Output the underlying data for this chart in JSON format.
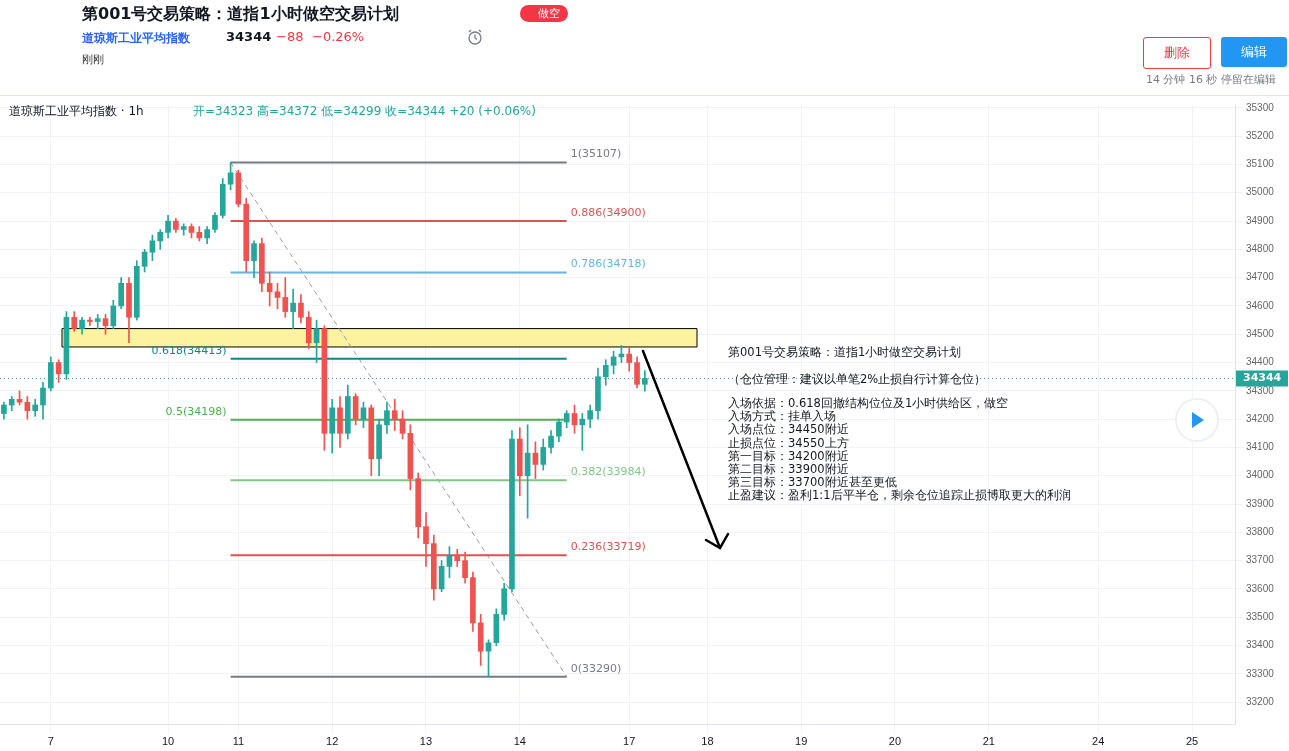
{
  "chart_data": {
    "type": "candlestick",
    "title": "第001号交易策略：道指1小时做空交易计划",
    "subtitle": "道琼斯工业平均指数",
    "annotations": [
      "做空",
      "34344",
      "−88",
      "−0.26%",
      "刚刚",
      "删除",
      "编辑",
      "14 分钟 16 秒 停留在编辑",
      "道琼斯工业平均指数 · 1h",
      "开=34323 高=34372 低=34299 收=34344 +20 (+0.06%)",
      "第001号交易策略：道指1小时做空交易计划",
      "（仓位管理：建议以单笔2%止损自行计算仓位）",
      "入场依据：0.618回撤结构位位及1小时供给区，做空",
      "入场方式：挂单入场",
      "入场点位：34450附近",
      "止损点位：34550上方",
      "第一目标：34200附近",
      "第二目标：33900附近",
      "第三目标：33700附近甚至更低",
      "止盈建议：盈利1:1后平半仓，剩余仓位追踪止损博取更大的利润"
    ],
    "categories": [
      null,
      null,
      null,
      null,
      null,
      null,
      "7",
      null,
      null,
      null,
      null,
      null,
      null,
      null,
      null,
      null,
      null,
      null,
      null,
      null,
      null,
      "10",
      null,
      null,
      null,
      null,
      null,
      null,
      null,
      null,
      "11",
      null,
      null,
      null,
      null,
      null,
      null,
      null,
      null,
      null,
      null,
      null,
      "12",
      null,
      null,
      null,
      null,
      null,
      null,
      null,
      null,
      null,
      null,
      null,
      "13",
      null,
      null,
      null,
      null,
      null,
      null,
      null,
      null,
      null,
      null,
      null,
      "14",
      null,
      null,
      null,
      null,
      null,
      null,
      null,
      null,
      null,
      null,
      null,
      null,
      null,
      "17",
      null,
      null,
      null,
      null,
      null,
      null,
      null,
      null,
      null,
      "18",
      null,
      null,
      null,
      null,
      null,
      null,
      null,
      null,
      null,
      null,
      null,
      "19",
      null,
      null,
      null,
      null,
      null,
      null,
      null,
      null,
      null,
      null,
      null,
      "20",
      null,
      null,
      null,
      null,
      null,
      null,
      null,
      null,
      null,
      null,
      null,
      "21",
      null,
      null,
      null,
      null,
      null,
      null,
      null,
      null,
      null,
      null,
      null,
      null,
      null,
      "24",
      null,
      null,
      null,
      null,
      null,
      null,
      null,
      null,
      null,
      null,
      null,
      "25",
      null,
      null,
      null,
      null,
      null
    ],
    "ohlc": [
      [
        34220,
        34260,
        34200,
        34250
      ],
      [
        34250,
        34280,
        34230,
        34270
      ],
      [
        34270,
        34300,
        34250,
        34260
      ],
      [
        34260,
        34280,
        34200,
        34230
      ],
      [
        34230,
        34270,
        34210,
        34250
      ],
      [
        34250,
        34330,
        34200,
        34310
      ],
      [
        34310,
        34420,
        34300,
        34400
      ],
      [
        34400,
        34410,
        34330,
        34360
      ],
      [
        34360,
        34580,
        34340,
        34560
      ],
      [
        34560,
        34580,
        34510,
        34520
      ],
      [
        34520,
        34560,
        34500,
        34550
      ],
      [
        34550,
        34560,
        34530,
        34545
      ],
      [
        34545,
        34570,
        34520,
        34555
      ],
      [
        34555,
        34570,
        34500,
        34530
      ],
      [
        34530,
        34620,
        34520,
        34600
      ],
      [
        34600,
        34700,
        34590,
        34680
      ],
      [
        34680,
        34700,
        34470,
        34560
      ],
      [
        34560,
        34760,
        34550,
        34740
      ],
      [
        34740,
        34800,
        34720,
        34790
      ],
      [
        34790,
        34850,
        34760,
        34830
      ],
      [
        34830,
        34870,
        34800,
        34860
      ],
      [
        34860,
        34920,
        34840,
        34900
      ],
      [
        34900,
        34910,
        34860,
        34870
      ],
      [
        34870,
        34890,
        34850,
        34880
      ],
      [
        34880,
        34890,
        34840,
        34860
      ],
      [
        34860,
        34880,
        34830,
        34840
      ],
      [
        34840,
        34880,
        34820,
        34870
      ],
      [
        34870,
        34930,
        34860,
        34920
      ],
      [
        34920,
        35050,
        34910,
        35030
      ],
      [
        35030,
        35107,
        35010,
        35070
      ],
      [
        35070,
        35080,
        34950,
        34960
      ],
      [
        34960,
        34980,
        34720,
        34760
      ],
      [
        34760,
        34830,
        34700,
        34820
      ],
      [
        34820,
        34840,
        34650,
        34680
      ],
      [
        34680,
        34720,
        34600,
        34650
      ],
      [
        34650,
        34680,
        34590,
        34630
      ],
      [
        34630,
        34700,
        34560,
        34580
      ],
      [
        34580,
        34660,
        34520,
        34610
      ],
      [
        34610,
        34640,
        34540,
        34560
      ],
      [
        34560,
        34580,
        34450,
        34470
      ],
      [
        34470,
        34550,
        34400,
        34520
      ],
      [
        34520,
        34530,
        34090,
        34150
      ],
      [
        34150,
        34270,
        34080,
        34240
      ],
      [
        34240,
        34280,
        34100,
        34150
      ],
      [
        34150,
        34320,
        34130,
        34280
      ],
      [
        34280,
        34290,
        34180,
        34200
      ],
      [
        34200,
        34260,
        34170,
        34240
      ],
      [
        34240,
        34250,
        34000,
        34060
      ],
      [
        34060,
        34200,
        34000,
        34180
      ],
      [
        34180,
        34260,
        34150,
        34230
      ],
      [
        34230,
        34270,
        34160,
        34200
      ],
      [
        34200,
        34230,
        34130,
        34150
      ],
      [
        34150,
        34180,
        33950,
        33990
      ],
      [
        33990,
        34010,
        33780,
        33820
      ],
      [
        33820,
        33870,
        33680,
        33760
      ],
      [
        33760,
        33790,
        33560,
        33600
      ],
      [
        33600,
        33700,
        33590,
        33680
      ],
      [
        33680,
        33750,
        33640,
        33720
      ],
      [
        33720,
        33740,
        33680,
        33700
      ],
      [
        33700,
        33730,
        33620,
        33640
      ],
      [
        33640,
        33660,
        33450,
        33480
      ],
      [
        33480,
        33510,
        33330,
        33380
      ],
      [
        33380,
        33420,
        33290,
        33410
      ],
      [
        33410,
        33530,
        33400,
        33510
      ],
      [
        33510,
        33620,
        33490,
        33600
      ],
      [
        33600,
        34160,
        33590,
        34130
      ],
      [
        34130,
        34170,
        33930,
        34000
      ],
      [
        34000,
        34180,
        33850,
        34080
      ],
      [
        34080,
        34120,
        33990,
        34040
      ],
      [
        34040,
        34130,
        34020,
        34100
      ],
      [
        34100,
        34160,
        34080,
        34140
      ],
      [
        34140,
        34200,
        34120,
        34190
      ],
      [
        34190,
        34230,
        34170,
        34220
      ],
      [
        34220,
        34250,
        34150,
        34180
      ],
      [
        34180,
        34220,
        34090,
        34200
      ],
      [
        34200,
        34250,
        34170,
        34230
      ],
      [
        34230,
        34380,
        34200,
        34350
      ],
      [
        34350,
        34410,
        34320,
        34390
      ],
      [
        34390,
        34440,
        34360,
        34420
      ],
      [
        34420,
        34460,
        34400,
        34430
      ],
      [
        34430,
        34450,
        34370,
        34400
      ],
      [
        34400,
        34420,
        34310,
        34323
      ],
      [
        34323,
        34372,
        34299,
        34344
      ],
      null,
      null,
      null,
      null,
      null,
      null,
      null,
      null,
      null,
      null,
      null,
      null,
      null,
      null,
      null,
      null,
      null,
      null,
      null,
      null,
      null,
      null,
      null,
      null,
      null,
      null,
      null,
      null,
      null,
      null,
      null,
      null,
      null,
      null,
      null,
      null,
      null,
      null,
      null,
      null,
      null,
      null,
      null,
      null,
      null,
      null,
      null,
      null,
      null,
      null,
      null,
      null,
      null,
      null,
      null,
      null,
      null,
      null,
      null,
      null,
      null,
      null,
      null,
      null,
      null,
      null,
      null,
      null,
      null,
      null,
      null,
      null,
      null,
      null,
      null
    ],
    "series": [
      {
        "type": "line",
        "name": "1(35107)",
        "color": "#787b86",
        "values": [
          null,
          null,
          null,
          null,
          null,
          null,
          null,
          null,
          null,
          null,
          null,
          null,
          null,
          null,
          null,
          null,
          null,
          null,
          null,
          null,
          null,
          null,
          null,
          null,
          null,
          null,
          null,
          null,
          null,
          35107,
          null,
          null,
          null,
          null,
          null,
          null,
          null,
          null,
          null,
          null,
          null,
          null,
          null,
          null,
          null,
          null,
          null,
          null,
          null,
          null,
          null,
          null,
          null,
          null,
          null,
          null,
          null,
          null,
          null,
          null,
          null,
          null,
          null,
          null,
          null,
          null,
          null,
          null,
          null,
          null,
          null,
          null,
          35107,
          null,
          null,
          null,
          null,
          null,
          null,
          null,
          null,
          null,
          null,
          null,
          null,
          null,
          null,
          null,
          null,
          null,
          null,
          null,
          null,
          null,
          null,
          null,
          null,
          null,
          null,
          null,
          null,
          null,
          null,
          null,
          null,
          null,
          null,
          null,
          null,
          null,
          null,
          null,
          null,
          null,
          null,
          null,
          null,
          null,
          null,
          null,
          null,
          null,
          null,
          null,
          null,
          null,
          null,
          null,
          null,
          null,
          null,
          null,
          null,
          null,
          null,
          null,
          null,
          null,
          null,
          null,
          null,
          null,
          null,
          null,
          null,
          null,
          null,
          null,
          null,
          null,
          null,
          null,
          null,
          null,
          null,
          null,
          null,
          null
        ]
      },
      {
        "type": "line",
        "name": "0.886(34900)",
        "color": "#e0524f",
        "values": [
          null,
          null,
          null,
          null,
          null,
          null,
          null,
          null,
          null,
          null,
          null,
          null,
          null,
          null,
          null,
          null,
          null,
          null,
          null,
          null,
          null,
          null,
          null,
          null,
          null,
          null,
          null,
          null,
          null,
          34900,
          null,
          null,
          null,
          null,
          null,
          null,
          null,
          null,
          null,
          null,
          null,
          null,
          null,
          null,
          null,
          null,
          null,
          null,
          null,
          null,
          null,
          null,
          null,
          null,
          null,
          null,
          null,
          null,
          null,
          null,
          null,
          null,
          null,
          null,
          null,
          null,
          null,
          null,
          null,
          null,
          null,
          null,
          34900,
          null,
          null,
          null,
          null,
          null,
          null,
          null,
          null,
          null,
          null,
          null,
          null,
          null,
          null,
          null,
          null,
          null,
          null,
          null,
          null,
          null,
          null,
          null,
          null,
          null,
          null,
          null,
          null,
          null,
          null,
          null,
          null,
          null,
          null,
          null,
          null,
          null,
          null,
          null,
          null,
          null,
          null,
          null,
          null,
          null,
          null,
          null,
          null,
          null,
          null,
          null,
          null,
          null,
          null,
          null,
          null,
          null,
          null,
          null,
          null,
          null,
          null,
          null,
          null,
          null,
          null,
          null,
          null,
          null,
          null,
          null,
          null,
          null,
          null,
          null,
          null,
          null,
          null,
          null,
          null,
          null,
          null,
          null,
          null,
          null
        ]
      },
      {
        "type": "line",
        "name": "0.786(34718)",
        "color": "#64b5e0",
        "values": [
          null,
          null,
          null,
          null,
          null,
          null,
          null,
          null,
          null,
          null,
          null,
          null,
          null,
          null,
          null,
          null,
          null,
          null,
          null,
          null,
          null,
          null,
          null,
          null,
          null,
          null,
          null,
          null,
          null,
          34718,
          null,
          null,
          null,
          null,
          null,
          null,
          null,
          null,
          null,
          null,
          null,
          null,
          null,
          null,
          null,
          null,
          null,
          null,
          null,
          null,
          null,
          null,
          null,
          null,
          null,
          null,
          null,
          null,
          null,
          null,
          null,
          null,
          null,
          null,
          null,
          null,
          null,
          null,
          null,
          null,
          null,
          null,
          34718,
          null,
          null,
          null,
          null,
          null,
          null,
          null,
          null,
          null,
          null,
          null,
          null,
          null,
          null,
          null,
          null,
          null,
          null,
          null,
          null,
          null,
          null,
          null,
          null,
          null,
          null,
          null,
          null,
          null,
          null,
          null,
          null,
          null,
          null,
          null,
          null,
          null,
          null,
          null,
          null,
          null,
          null,
          null,
          null,
          null,
          null,
          null,
          null,
          null,
          null,
          null,
          null,
          null,
          null,
          null,
          null,
          null,
          null,
          null,
          null,
          null,
          null,
          null,
          null,
          null,
          null,
          null,
          null,
          null,
          null,
          null,
          null,
          null,
          null,
          null,
          null,
          null,
          null,
          null,
          null,
          null,
          null,
          null,
          null,
          null
        ]
      },
      {
        "type": "line",
        "name": "0.618(34413)",
        "color": "#138484",
        "values": [
          null,
          null,
          null,
          null,
          null,
          null,
          null,
          null,
          null,
          null,
          null,
          null,
          null,
          null,
          null,
          null,
          null,
          null,
          null,
          null,
          null,
          null,
          null,
          null,
          null,
          null,
          null,
          null,
          null,
          34413,
          null,
          null,
          null,
          null,
          null,
          null,
          null,
          null,
          null,
          null,
          null,
          null,
          null,
          null,
          null,
          null,
          null,
          null,
          null,
          null,
          null,
          null,
          null,
          null,
          null,
          null,
          null,
          null,
          null,
          null,
          null,
          null,
          null,
          null,
          null,
          null,
          null,
          null,
          null,
          null,
          null,
          null,
          34413,
          null,
          null,
          null,
          null,
          null,
          null,
          null,
          null,
          null,
          null,
          null,
          null,
          null,
          null,
          null,
          null,
          null,
          null,
          null,
          null,
          null,
          null,
          null,
          null,
          null,
          null,
          null,
          null,
          null,
          null,
          null,
          null,
          null,
          null,
          null,
          null,
          null,
          null,
          null,
          null,
          null,
          null,
          null,
          null,
          null,
          null,
          null,
          null,
          null,
          null,
          null,
          null,
          null,
          null,
          null,
          null,
          null,
          null,
          null,
          null,
          null,
          null,
          null,
          null,
          null,
          null,
          null,
          null,
          null,
          null,
          null,
          null,
          null,
          null,
          null,
          null,
          null,
          null,
          null,
          null,
          null,
          null,
          null,
          null,
          null
        ]
      },
      {
        "type": "line",
        "name": "0.5(34198)",
        "color": "#4caf50",
        "values": [
          null,
          null,
          null,
          null,
          null,
          null,
          null,
          null,
          null,
          null,
          null,
          null,
          null,
          null,
          null,
          null,
          null,
          null,
          null,
          null,
          null,
          null,
          null,
          null,
          null,
          null,
          null,
          null,
          null,
          34198,
          null,
          null,
          null,
          null,
          null,
          null,
          null,
          null,
          null,
          null,
          null,
          null,
          null,
          null,
          null,
          null,
          null,
          null,
          null,
          null,
          null,
          null,
          null,
          null,
          null,
          null,
          null,
          null,
          null,
          null,
          null,
          null,
          null,
          null,
          null,
          null,
          null,
          null,
          null,
          null,
          null,
          null,
          34198,
          null,
          null,
          null,
          null,
          null,
          null,
          null,
          null,
          null,
          null,
          null,
          null,
          null,
          null,
          null,
          null,
          null,
          null,
          null,
          null,
          null,
          null,
          null,
          null,
          null,
          null,
          null,
          null,
          null,
          null,
          null,
          null,
          null,
          null,
          null,
          null,
          null,
          null,
          null,
          null,
          null,
          null,
          null,
          null,
          null,
          null,
          null,
          null,
          null,
          null,
          null,
          null,
          null,
          null,
          null,
          null,
          null,
          null,
          null,
          null,
          null,
          null,
          null,
          null,
          null,
          null,
          null,
          null,
          null,
          null,
          null,
          null,
          null,
          null,
          null,
          null,
          null,
          null,
          null,
          null,
          null,
          null,
          null,
          null,
          null
        ]
      },
      {
        "type": "line",
        "name": "0.382(33984)",
        "color": "#81c784",
        "values": [
          null,
          null,
          null,
          null,
          null,
          null,
          null,
          null,
          null,
          null,
          null,
          null,
          null,
          null,
          null,
          null,
          null,
          null,
          null,
          null,
          null,
          null,
          null,
          null,
          null,
          null,
          null,
          null,
          null,
          33984,
          null,
          null,
          null,
          null,
          null,
          null,
          null,
          null,
          null,
          null,
          null,
          null,
          null,
          null,
          null,
          null,
          null,
          null,
          null,
          null,
          null,
          null,
          null,
          null,
          null,
          null,
          null,
          null,
          null,
          null,
          null,
          null,
          null,
          null,
          null,
          null,
          null,
          null,
          null,
          null,
          null,
          null,
          33984,
          null,
          null,
          null,
          null,
          null,
          null,
          null,
          null,
          null,
          null,
          null,
          null,
          null,
          null,
          null,
          null,
          null,
          null,
          null,
          null,
          null,
          null,
          null,
          null,
          null,
          null,
          null,
          null,
          null,
          null,
          null,
          null,
          null,
          null,
          null,
          null,
          null,
          null,
          null,
          null,
          null,
          null,
          null,
          null,
          null,
          null,
          null,
          null,
          null,
          null,
          null,
          null,
          null,
          null,
          null,
          null,
          null,
          null,
          null,
          null,
          null,
          null,
          null,
          null,
          null,
          null,
          null,
          null,
          null,
          null,
          null,
          null,
          null,
          null,
          null,
          null,
          null,
          null,
          null,
          null,
          null,
          null,
          null,
          null,
          null
        ]
      },
      {
        "type": "line",
        "name": "0.236(33719)",
        "color": "#e0524f",
        "values": [
          null,
          null,
          null,
          null,
          null,
          null,
          null,
          null,
          null,
          null,
          null,
          null,
          null,
          null,
          null,
          null,
          null,
          null,
          null,
          null,
          null,
          null,
          null,
          null,
          null,
          null,
          null,
          null,
          null,
          33719,
          null,
          null,
          null,
          null,
          null,
          null,
          null,
          null,
          null,
          null,
          null,
          null,
          null,
          null,
          null,
          null,
          null,
          null,
          null,
          null,
          null,
          null,
          null,
          null,
          null,
          null,
          null,
          null,
          null,
          null,
          null,
          null,
          null,
          null,
          null,
          null,
          null,
          null,
          null,
          null,
          null,
          null,
          33719,
          null,
          null,
          null,
          null,
          null,
          null,
          null,
          null,
          null,
          null,
          null,
          null,
          null,
          null,
          null,
          null,
          null,
          null,
          null,
          null,
          null,
          null,
          null,
          null,
          null,
          null,
          null,
          null,
          null,
          null,
          null,
          null,
          null,
          null,
          null,
          null,
          null,
          null,
          null,
          null,
          null,
          null,
          null,
          null,
          null,
          null,
          null,
          null,
          null,
          null,
          null,
          null,
          null,
          null,
          null,
          null,
          null,
          null,
          null,
          null,
          null,
          null,
          null,
          null,
          null,
          null,
          null,
          null,
          null,
          null,
          null,
          null,
          null,
          null,
          null,
          null,
          null,
          null,
          null,
          null,
          null,
          null,
          null,
          null,
          null
        ]
      },
      {
        "type": "line",
        "name": "0(33290)",
        "color": "#787b86",
        "values": [
          null,
          null,
          null,
          null,
          null,
          null,
          null,
          null,
          null,
          null,
          null,
          null,
          null,
          null,
          null,
          null,
          null,
          null,
          null,
          null,
          null,
          null,
          null,
          null,
          null,
          null,
          null,
          null,
          null,
          33290,
          null,
          null,
          null,
          null,
          null,
          null,
          null,
          null,
          null,
          null,
          null,
          null,
          null,
          null,
          null,
          null,
          null,
          null,
          null,
          null,
          null,
          null,
          null,
          null,
          null,
          null,
          null,
          null,
          null,
          null,
          null,
          null,
          null,
          null,
          null,
          null,
          null,
          null,
          null,
          null,
          null,
          null,
          33290,
          null,
          null,
          null,
          null,
          null,
          null,
          null,
          null,
          null,
          null,
          null,
          null,
          null,
          null,
          null,
          null,
          null,
          null,
          null,
          null,
          null,
          null,
          null,
          null,
          null,
          null,
          null,
          null,
          null,
          null,
          null,
          null,
          null,
          null,
          null,
          null,
          null,
          null,
          null,
          null,
          null,
          null,
          null,
          null,
          null,
          null,
          null,
          null,
          null,
          null,
          null,
          null,
          null,
          null,
          null,
          null,
          null,
          null,
          null,
          null,
          null,
          null,
          null,
          null,
          null,
          null,
          null,
          null,
          null,
          null,
          null,
          null,
          null,
          null,
          null,
          null,
          null,
          null,
          null,
          null,
          null,
          null,
          null,
          null,
          null
        ]
      },
      {
        "type": "line",
        "color": "#9e9e9e",
        "line_style": "dashed",
        "values": [
          null,
          null,
          null,
          null,
          null,
          null,
          null,
          null,
          null,
          null,
          null,
          null,
          null,
          null,
          null,
          null,
          null,
          null,
          null,
          null,
          null,
          null,
          null,
          null,
          null,
          null,
          null,
          null,
          null,
          35107,
          null,
          null,
          null,
          null,
          null,
          null,
          null,
          null,
          null,
          null,
          null,
          null,
          null,
          null,
          null,
          null,
          null,
          null,
          null,
          null,
          null,
          null,
          null,
          null,
          null,
          null,
          null,
          null,
          null,
          null,
          null,
          null,
          null,
          null,
          null,
          null,
          null,
          null,
          null,
          null,
          null,
          null,
          33290,
          null,
          null,
          null,
          null,
          null,
          null,
          null,
          null,
          null,
          null,
          null,
          null,
          null,
          null,
          null,
          null,
          null,
          null,
          null,
          null,
          null,
          null,
          null,
          null,
          null,
          null,
          null,
          null,
          null,
          null,
          null,
          null,
          null,
          null,
          null,
          null,
          null,
          null,
          null,
          null,
          null,
          null,
          null,
          null,
          null,
          null,
          null,
          null,
          null,
          null,
          null,
          null,
          null,
          null,
          null,
          null,
          null,
          null,
          null,
          null,
          null,
          null,
          null,
          null,
          null,
          null,
          null,
          null,
          null,
          null,
          null,
          null,
          null,
          null,
          null,
          null,
          null,
          null,
          null,
          null,
          null,
          null,
          null,
          null,
          null
        ]
      }
    ],
    "ref_lines": [
      {
        "axis": "y",
        "value": 34344,
        "label": "34344",
        "color": "#26a69a",
        "line_style": "dotted"
      }
    ],
    "bands": [
      {
        "axis": "y",
        "from": 34455,
        "to": 34520,
        "color": "#fdf2a0"
      }
    ],
    "ylim": [
      33120,
      35310
    ],
    "yticks": [
      33200,
      33300,
      33400,
      33500,
      33600,
      33700,
      33800,
      33900,
      34000,
      34100,
      34200,
      34300,
      34400,
      34500,
      34600,
      34700,
      34800,
      34900,
      35000,
      35100,
      35200,
      35300
    ],
    "grid": true,
    "legend": false,
    "marker": "none"
  }
}
